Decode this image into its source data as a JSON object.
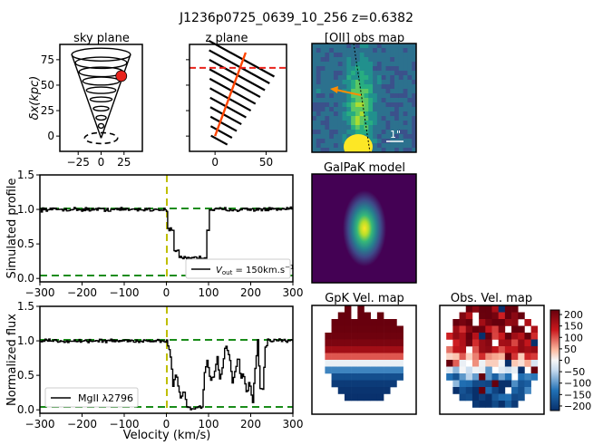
{
  "figure": {
    "title": "J1236p0725_0639_10_256 z=0.6382"
  },
  "colors": {
    "data_line": "#000000",
    "green_ref": "#1a8c1a",
    "yellow_zero": "#bfbf00",
    "outflow_axis": "#ff4500",
    "plane_dash": "#e8231c",
    "red_ball": "#e8231c",
    "arrow": "#ff8c00"
  },
  "chart_data": [
    {
      "id": "sky_plane",
      "type": "diagram",
      "title": "sky plane",
      "ylabel": "δx(kpc)",
      "xlim": [
        -45,
        45
      ],
      "ylim": [
        -15,
        90
      ],
      "xticks": [
        "−25",
        "0",
        "25"
      ],
      "xtick_values": [
        -25,
        0,
        25
      ],
      "yticks": [
        "0",
        "25",
        "50",
        "75"
      ],
      "ytick_values": [
        0,
        25,
        50,
        75
      ]
    },
    {
      "id": "z_plane",
      "type": "diagram",
      "title": "z plane",
      "xlim": [
        -25,
        70
      ],
      "ylim": [
        -15,
        90
      ],
      "xticks": [
        "0",
        "50"
      ],
      "xtick_values": [
        0,
        50
      ]
    },
    {
      "id": "oii_map",
      "type": "heatmap",
      "title": "[OII] obs map",
      "scale_label": "1\""
    },
    {
      "id": "galpak_model",
      "type": "heatmap",
      "title": "GalPaK model"
    },
    {
      "id": "simulated_profile",
      "type": "line",
      "ylabel": "Simulated profile",
      "xlim": [
        -300,
        300
      ],
      "ylim": [
        -0.05,
        1.5
      ],
      "xticks": [
        "−300",
        "−200",
        "−100",
        "0",
        "100",
        "200",
        "300"
      ],
      "xtick_values": [
        -300,
        -200,
        -100,
        0,
        100,
        200,
        300
      ],
      "yticks": [
        "0.0",
        "0.5",
        "1.0",
        "1.5"
      ],
      "ytick_values": [
        0,
        0.5,
        1.0,
        1.5
      ],
      "legend": "V_out = 150km.s⁻¹",
      "legend_parts": {
        "v": "V",
        "sub": "out",
        "rest": " = 150km.s",
        "sup": "−1"
      },
      "continuum": 1.0,
      "noise": 0.04,
      "absorption": [
        {
          "from": 2,
          "to": 18,
          "level": 0.7
        },
        {
          "from": 18,
          "to": 28,
          "level": 0.4
        },
        {
          "from": 28,
          "to": 95,
          "level": 0.3
        },
        {
          "from": 95,
          "to": 102,
          "level": 0.7
        }
      ]
    },
    {
      "id": "mgii",
      "type": "line",
      "ylabel": "Normalized flux",
      "xlabel": "Velocity (km/s)",
      "xlim": [
        -300,
        300
      ],
      "ylim": [
        -0.05,
        1.5
      ],
      "xticks": [
        "−300",
        "−200",
        "−100",
        "0",
        "100",
        "200",
        "300"
      ],
      "xtick_values": [
        -300,
        -200,
        -100,
        0,
        100,
        200,
        300
      ],
      "yticks": [
        "0.0",
        "0.5",
        "1.0",
        "1.5"
      ],
      "ytick_values": [
        0,
        0.5,
        1.0,
        1.5
      ],
      "legend": "MgII λ2796",
      "continuum": 1.0,
      "noise": 0.04,
      "profile": [
        [
          0,
          1.0
        ],
        [
          10,
          0.75
        ],
        [
          15,
          0.35
        ],
        [
          22,
          0.55
        ],
        [
          28,
          0.3
        ],
        [
          34,
          0.15
        ],
        [
          40,
          0.3
        ],
        [
          48,
          0.05
        ],
        [
          58,
          0.02
        ],
        [
          68,
          0.02
        ],
        [
          76,
          0.05
        ],
        [
          84,
          0.05
        ],
        [
          90,
          0.55
        ],
        [
          96,
          0.7
        ],
        [
          104,
          0.4
        ],
        [
          112,
          0.5
        ],
        [
          120,
          0.75
        ],
        [
          126,
          0.45
        ],
        [
          132,
          0.6
        ],
        [
          140,
          0.95
        ],
        [
          150,
          0.7
        ],
        [
          156,
          0.4
        ],
        [
          162,
          0.55
        ],
        [
          170,
          0.75
        ],
        [
          176,
          0.45
        ],
        [
          182,
          0.55
        ],
        [
          190,
          0.2
        ],
        [
          196,
          0.45
        ],
        [
          204,
          0.1
        ],
        [
          210,
          0.6
        ],
        [
          216,
          1.0
        ],
        [
          222,
          0.3
        ],
        [
          228,
          0.3
        ],
        [
          234,
          0.9
        ],
        [
          240,
          1.0
        ]
      ]
    },
    {
      "id": "gpk_vel_map",
      "type": "heatmap",
      "title": "GpK Vel. map"
    },
    {
      "id": "obs_vel_map",
      "type": "heatmap",
      "title": "Obs. Vel. map",
      "colorbar_ticks": [
        "200",
        "150",
        "100",
        "50",
        "0",
        "−50",
        "−100",
        "−150",
        "−200"
      ],
      "colorbar_values": [
        200,
        150,
        100,
        50,
        0,
        -50,
        -100,
        -150,
        -200
      ],
      "clim": [
        -220,
        220
      ]
    }
  ]
}
